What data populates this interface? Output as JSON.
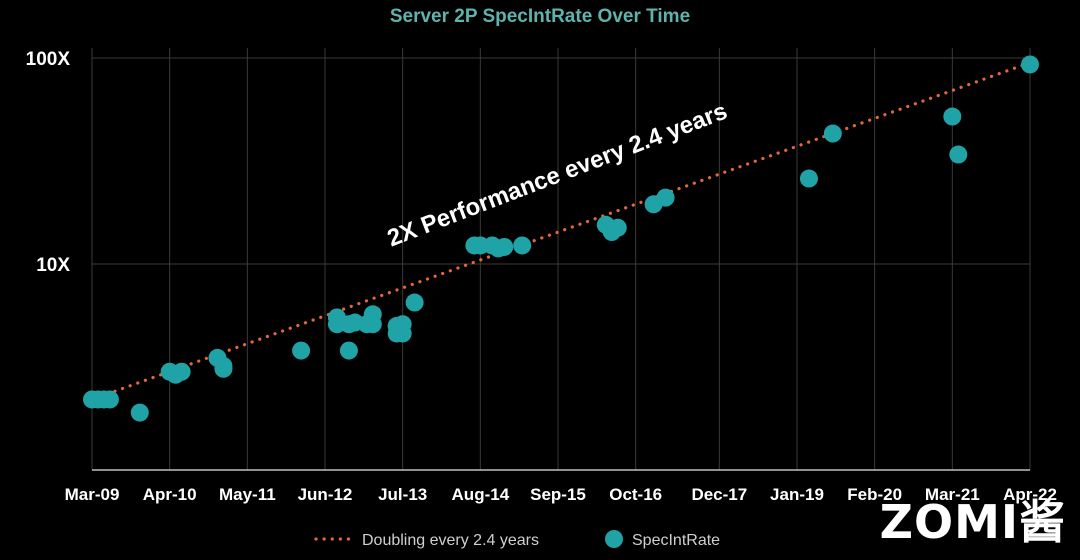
{
  "chart_data": {
    "type": "scatter",
    "title": "Server 2P SpecIntRate Over Time",
    "y_scale": "log",
    "y_range": [
      1,
      100
    ],
    "y_tick_labels": [
      "10X",
      "100X"
    ],
    "x_tick_labels": [
      "Mar-09",
      "Apr-10",
      "May-11",
      "Jun-12",
      "Jul-13",
      "Aug-14",
      "Sep-15",
      "Oct-16",
      "Dec-17",
      "Jan-19",
      "Feb-20",
      "Mar-21",
      "Apr-22"
    ],
    "grid": "vertical",
    "legend_position": "bottom-center",
    "annotation": "2X Performance every 2.4 years",
    "trend_series": {
      "name": "Doubling every 2.4 years",
      "color": "#e0683a",
      "x": [
        "Mar-09",
        "Apr-22"
      ],
      "y": [
        2.2,
        95
      ]
    },
    "series": [
      {
        "name": "SpecIntRate",
        "color": "#1fa3a6",
        "x": [
          "Mar-09",
          "Apr-09",
          "May-09",
          "Jun-09",
          "Nov-09",
          "Apr-10",
          "May-10",
          "Jun-10",
          "Dec-10",
          "Jan-11",
          "Jan-11",
          "Feb-12",
          "Aug-12",
          "Aug-12",
          "Oct-12",
          "Oct-12",
          "Nov-12",
          "Jan-13",
          "Feb-13",
          "Feb-13",
          "Jun-13",
          "Jun-13",
          "Jun-13",
          "Jul-13",
          "Jul-13",
          "Sep-13",
          "Jul-14",
          "Aug-14",
          "Oct-14",
          "Nov-14",
          "Dec-14",
          "Mar-15",
          "May-16",
          "Jun-16",
          "Jun-16",
          "Jul-16",
          "Jan-17",
          "Mar-17",
          "Mar-19",
          "Jul-19",
          "Mar-21",
          "Apr-21",
          "Apr-22"
        ],
        "y": [
          2.2,
          2.2,
          2.2,
          2.2,
          1.9,
          3.0,
          2.9,
          3.0,
          3.5,
          3.2,
          3.1,
          3.8,
          5.5,
          5.1,
          5.1,
          3.8,
          5.2,
          5.1,
          5.7,
          5.1,
          5.0,
          4.6,
          5.0,
          4.6,
          5.1,
          6.5,
          12.3,
          12.3,
          12.3,
          11.9,
          12.1,
          12.3,
          15.5,
          14.3,
          14.6,
          15.0,
          19.5,
          21.0,
          26.0,
          43.0,
          52.0,
          34.0,
          93.0
        ]
      }
    ]
  },
  "watermark": "ZOMI酱"
}
